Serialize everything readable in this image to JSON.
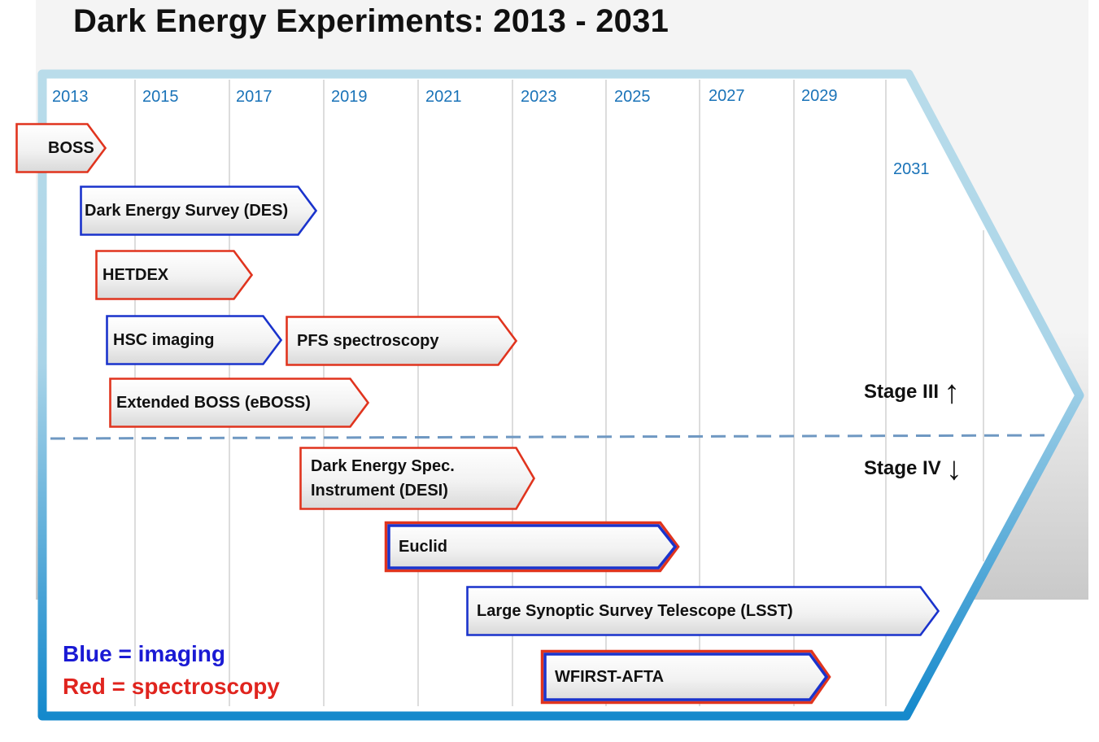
{
  "title": "Dark Energy Experiments: 2013 - 2031",
  "colors": {
    "imaging": "#1a33cc",
    "spectroscopy": "#e0341e",
    "frame_top": "#b9dcea",
    "frame_bottom": "#1589cc",
    "year_text": "#1a73b8",
    "divider": "#6f98c2"
  },
  "timeline": {
    "years": [
      "2013",
      "2015",
      "2017",
      "2019",
      "2021",
      "2023",
      "2025",
      "2027",
      "2029",
      "2031"
    ]
  },
  "experiments": [
    {
      "label": "BOSS",
      "type": "spectroscopy"
    },
    {
      "label": "Dark Energy Survey (DES)",
      "type": "imaging"
    },
    {
      "label": "HETDEX",
      "type": "spectroscopy"
    },
    {
      "label": "HSC imaging",
      "type": "imaging"
    },
    {
      "label": "PFS spectroscopy",
      "type": "spectroscopy"
    },
    {
      "label": "Extended BOSS (eBOSS)",
      "type": "spectroscopy"
    },
    {
      "label_line1": "Dark Energy Spec.",
      "label_line2": "Instrument (DESI)",
      "type": "spectroscopy"
    },
    {
      "label": "Euclid",
      "type": "both"
    },
    {
      "label": "Large Synoptic Survey Telescope (LSST)",
      "type": "imaging"
    },
    {
      "label": "WFIRST-AFTA",
      "type": "both"
    }
  ],
  "stages": {
    "upper": "Stage III",
    "upper_arrow": "↑",
    "lower": "Stage IV",
    "lower_arrow": "↓"
  },
  "legend": {
    "imaging": "Blue = imaging",
    "spectroscopy": "Red = spectroscopy"
  }
}
